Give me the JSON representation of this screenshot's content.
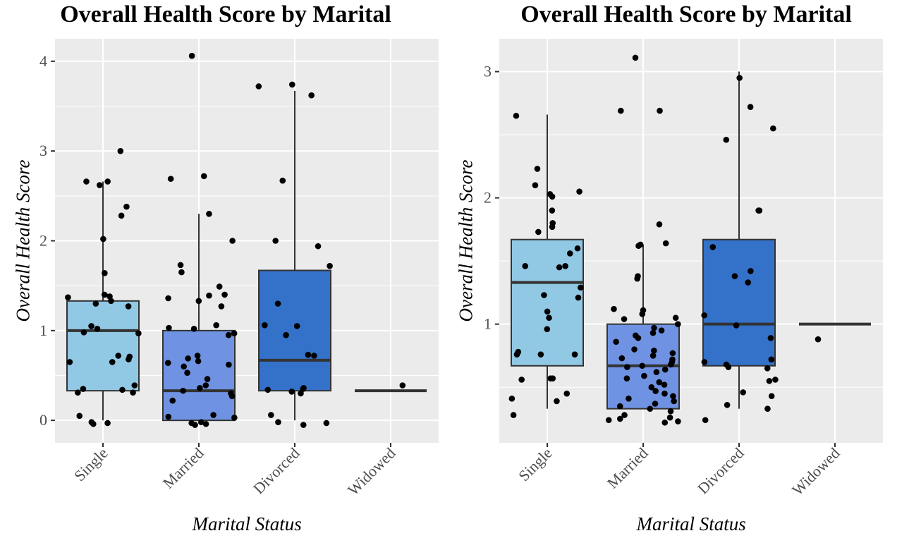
{
  "chart_data": [
    {
      "type": "boxplot",
      "title": "Overall Health Score by Marital",
      "xlabel": "Marital Status",
      "ylabel": "Overall Health Score",
      "categories": [
        "Single",
        "Married",
        "Divorced",
        "Widowed"
      ],
      "y_ticks": [
        0,
        1,
        2,
        3,
        4
      ],
      "ylim": [
        -0.25,
        4.25
      ],
      "grid": true,
      "box_fill_colors": [
        "#91c8e4",
        "#6f93e2",
        "#3471c8",
        "#3471c8"
      ],
      "boxes": [
        {
          "category": "Single",
          "whisker_low": 0,
          "q1": 0.33,
          "median": 1.0,
          "q3": 1.33,
          "whisker_high": 2.66
        },
        {
          "category": "Married",
          "whisker_low": 0,
          "q1": 0,
          "median": 0.33,
          "q3": 1.0,
          "whisker_high": 2.3
        },
        {
          "category": "Divorced",
          "whisker_low": 0,
          "q1": 0.33,
          "median": 0.67,
          "q3": 1.67,
          "whisker_high": 3.67
        },
        {
          "category": "Widowed",
          "whisker_low": 0.33,
          "q1": 0.33,
          "median": 0.33,
          "q3": 0.33,
          "whisker_high": 0.33
        }
      ],
      "points": [
        [
          0,
          3.0
        ],
        [
          0,
          2.66
        ],
        [
          0,
          2.62
        ],
        [
          0,
          2.66
        ],
        [
          0,
          2.38
        ],
        [
          0,
          2.28
        ],
        [
          0,
          2.02
        ],
        [
          0,
          1.64
        ],
        [
          0,
          1.4
        ],
        [
          0,
          1.37
        ],
        [
          0,
          1.38
        ],
        [
          0,
          1.33
        ],
        [
          0,
          1.3
        ],
        [
          0,
          1.27
        ],
        [
          0,
          1.05
        ],
        [
          0,
          1.02
        ],
        [
          0,
          0.98
        ],
        [
          0,
          0.97
        ],
        [
          0,
          0.72
        ],
        [
          0,
          0.71
        ],
        [
          0,
          0.68
        ],
        [
          0,
          0.65
        ],
        [
          0,
          0.65
        ],
        [
          0,
          0.39
        ],
        [
          0,
          0.35
        ],
        [
          0,
          0.34
        ],
        [
          0,
          0.31
        ],
        [
          0,
          0.31
        ],
        [
          0,
          0.05
        ],
        [
          0,
          -0.02
        ],
        [
          0,
          -0.03
        ],
        [
          0,
          -0.04
        ],
        [
          1,
          4.06
        ],
        [
          1,
          2.72
        ],
        [
          1,
          2.69
        ],
        [
          1,
          2.3
        ],
        [
          1,
          2.0
        ],
        [
          1,
          1.73
        ],
        [
          1,
          1.65
        ],
        [
          1,
          1.49
        ],
        [
          1,
          1.4
        ],
        [
          1,
          1.39
        ],
        [
          1,
          1.36
        ],
        [
          1,
          1.33
        ],
        [
          1,
          1.27
        ],
        [
          1,
          1.06
        ],
        [
          1,
          1.03
        ],
        [
          1,
          1.02
        ],
        [
          1,
          0.97
        ],
        [
          1,
          0.95
        ],
        [
          1,
          0.72
        ],
        [
          1,
          0.69
        ],
        [
          1,
          0.66
        ],
        [
          1,
          0.64
        ],
        [
          1,
          0.62
        ],
        [
          1,
          0.6
        ],
        [
          1,
          0.53
        ],
        [
          1,
          0.46
        ],
        [
          1,
          0.39
        ],
        [
          1,
          0.36
        ],
        [
          1,
          0.33
        ],
        [
          1,
          0.3
        ],
        [
          1,
          0.27
        ],
        [
          1,
          0.22
        ],
        [
          1,
          0.06
        ],
        [
          1,
          0.04
        ],
        [
          1,
          0.03
        ],
        [
          1,
          -0.02
        ],
        [
          1,
          -0.03
        ],
        [
          1,
          -0.04
        ],
        [
          1,
          -0.05
        ],
        [
          2,
          3.74
        ],
        [
          2,
          3.72
        ],
        [
          2,
          3.62
        ],
        [
          2,
          2.67
        ],
        [
          2,
          2.0
        ],
        [
          2,
          1.94
        ],
        [
          2,
          1.72
        ],
        [
          2,
          1.3
        ],
        [
          2,
          1.06
        ],
        [
          2,
          1.05
        ],
        [
          2,
          0.95
        ],
        [
          2,
          0.73
        ],
        [
          2,
          0.72
        ],
        [
          2,
          0.36
        ],
        [
          2,
          0.35
        ],
        [
          2,
          0.34
        ],
        [
          2,
          0.32
        ],
        [
          2,
          0.3
        ],
        [
          2,
          0.06
        ],
        [
          2,
          -0.02
        ],
        [
          2,
          -0.03
        ],
        [
          2,
          -0.05
        ],
        [
          3,
          0.39
        ]
      ]
    },
    {
      "type": "boxplot",
      "title": "Overall Health Score by Marital",
      "xlabel": "Marital Status",
      "ylabel": "Overall Health Score",
      "categories": [
        "Single",
        "Married",
        "Divorced",
        "Widowed"
      ],
      "y_ticks": [
        1,
        2,
        3
      ],
      "ylim": [
        0.06,
        3.26
      ],
      "grid": true,
      "box_fill_colors": [
        "#91c8e4",
        "#6f93e2",
        "#3471c8",
        "#3471c8"
      ],
      "boxes": [
        {
          "category": "Single",
          "whisker_low": 0.33,
          "q1": 0.67,
          "median": 1.33,
          "q3": 1.67,
          "whisker_high": 2.66
        },
        {
          "category": "Married",
          "whisker_low": 0.33,
          "q1": 0.33,
          "median": 0.67,
          "q3": 1.0,
          "whisker_high": 1.63
        },
        {
          "category": "Divorced",
          "whisker_low": 0.33,
          "q1": 0.67,
          "median": 1.0,
          "q3": 1.67,
          "whisker_high": 3.0
        },
        {
          "category": "Widowed",
          "whisker_low": 1.0,
          "q1": 1.0,
          "median": 1.0,
          "q3": 1.0,
          "whisker_high": 1.0
        }
      ],
      "points": [
        [
          0,
          2.65
        ],
        [
          0,
          2.23
        ],
        [
          0,
          2.1
        ],
        [
          0,
          2.05
        ],
        [
          0,
          2.03
        ],
        [
          0,
          2.01
        ],
        [
          0,
          1.9
        ],
        [
          0,
          1.8
        ],
        [
          0,
          1.77
        ],
        [
          0,
          1.73
        ],
        [
          0,
          1.6
        ],
        [
          0,
          1.56
        ],
        [
          0,
          1.46
        ],
        [
          0,
          1.46
        ],
        [
          0,
          1.45
        ],
        [
          0,
          1.29
        ],
        [
          0,
          1.23
        ],
        [
          0,
          1.21
        ],
        [
          0,
          1.1
        ],
        [
          0,
          1.05
        ],
        [
          0,
          0.96
        ],
        [
          0,
          0.78
        ],
        [
          0,
          0.76
        ],
        [
          0,
          0.76
        ],
        [
          0,
          0.76
        ],
        [
          0,
          0.57
        ],
        [
          0,
          0.56
        ],
        [
          0,
          0.57
        ],
        [
          0,
          0.45
        ],
        [
          0,
          0.41
        ],
        [
          0,
          0.39
        ],
        [
          0,
          0.28
        ],
        [
          1,
          3.11
        ],
        [
          1,
          2.69
        ],
        [
          1,
          2.69
        ],
        [
          1,
          1.79
        ],
        [
          1,
          1.64
        ],
        [
          1,
          1.63
        ],
        [
          1,
          1.62
        ],
        [
          1,
          1.38
        ],
        [
          1,
          1.36
        ],
        [
          1,
          1.12
        ],
        [
          1,
          1.11
        ],
        [
          1,
          1.08
        ],
        [
          1,
          1.05
        ],
        [
          1,
          1.04
        ],
        [
          1,
          1.0
        ],
        [
          1,
          0.97
        ],
        [
          1,
          0.95
        ],
        [
          1,
          0.93
        ],
        [
          1,
          0.91
        ],
        [
          1,
          0.89
        ],
        [
          1,
          0.86
        ],
        [
          1,
          0.8
        ],
        [
          1,
          0.79
        ],
        [
          1,
          0.77
        ],
        [
          1,
          0.75
        ],
        [
          1,
          0.73
        ],
        [
          1,
          0.72
        ],
        [
          1,
          0.7
        ],
        [
          1,
          0.68
        ],
        [
          1,
          0.67
        ],
        [
          1,
          0.66
        ],
        [
          1,
          0.64
        ],
        [
          1,
          0.62
        ],
        [
          1,
          0.59
        ],
        [
          1,
          0.57
        ],
        [
          1,
          0.54
        ],
        [
          1,
          0.52
        ],
        [
          1,
          0.5
        ],
        [
          1,
          0.47
        ],
        [
          1,
          0.45
        ],
        [
          1,
          0.43
        ],
        [
          1,
          0.41
        ],
        [
          1,
          0.39
        ],
        [
          1,
          0.37
        ],
        [
          1,
          0.35
        ],
        [
          1,
          0.33
        ],
        [
          1,
          0.31
        ],
        [
          1,
          0.28
        ],
        [
          1,
          0.26
        ],
        [
          1,
          0.25
        ],
        [
          1,
          0.24
        ],
        [
          1,
          0.23
        ],
        [
          1,
          0.22
        ],
        [
          2,
          2.95
        ],
        [
          2,
          2.72
        ],
        [
          2,
          2.55
        ],
        [
          2,
          2.46
        ],
        [
          2,
          1.9
        ],
        [
          2,
          1.9
        ],
        [
          2,
          1.61
        ],
        [
          2,
          1.42
        ],
        [
          2,
          1.38
        ],
        [
          2,
          1.33
        ],
        [
          2,
          1.07
        ],
        [
          2,
          0.99
        ],
        [
          2,
          0.89
        ],
        [
          2,
          0.72
        ],
        [
          2,
          0.7
        ],
        [
          2,
          0.68
        ],
        [
          2,
          0.66
        ],
        [
          2,
          0.65
        ],
        [
          2,
          0.56
        ],
        [
          2,
          0.55
        ],
        [
          2,
          0.46
        ],
        [
          2,
          0.43
        ],
        [
          2,
          0.36
        ],
        [
          2,
          0.33
        ],
        [
          2,
          0.24
        ],
        [
          3,
          0.88
        ]
      ]
    }
  ]
}
